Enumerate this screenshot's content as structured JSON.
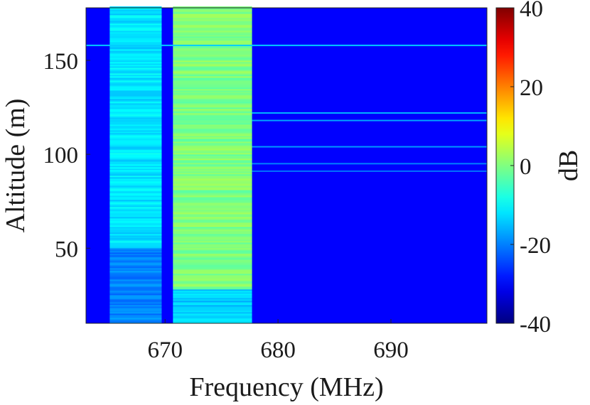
{
  "chart_data": {
    "type": "heatmap",
    "title": "",
    "xlabel": "Frequency (MHz)",
    "ylabel": "Altitude (m)",
    "colorbar_label": "dB",
    "xlim": [
      663,
      698.5
    ],
    "ylim": [
      10,
      178
    ],
    "clim": [
      -40,
      40
    ],
    "x_ticks": [
      670,
      680,
      690
    ],
    "y_ticks": [
      50,
      100,
      150
    ],
    "colorbar_ticks": [
      -40,
      -20,
      0,
      20,
      40
    ],
    "colormap": "jet",
    "background_level_db": -30,
    "bands": [
      {
        "id": "band-1",
        "freq_start": 665.1,
        "freq_end": 669.7,
        "alt_start": 10,
        "alt_end": 178,
        "level_db": -12,
        "low_alt_level_db": -20,
        "low_alt_below": 50
      },
      {
        "id": "band-2",
        "freq_start": 670.7,
        "freq_end": 677.7,
        "alt_start": 10,
        "alt_end": 178,
        "level_db": 0,
        "low_alt_level_db": -14,
        "low_alt_below": 28
      }
    ],
    "horizontal_lines": [
      {
        "altitude": 158,
        "freq_start": 663,
        "freq_end": 698.5,
        "level_db": -14
      },
      {
        "altitude": 122,
        "freq_start": 677.7,
        "freq_end": 698.5,
        "level_db": -16
      },
      {
        "altitude": 118,
        "freq_start": 677.7,
        "freq_end": 698.5,
        "level_db": -17
      },
      {
        "altitude": 104,
        "freq_start": 677.7,
        "freq_end": 698.5,
        "level_db": -18
      },
      {
        "altitude": 95,
        "freq_start": 677.7,
        "freq_end": 698.5,
        "level_db": -20
      },
      {
        "altitude": 91,
        "freq_start": 677.7,
        "freq_end": 698.5,
        "level_db": -21
      }
    ],
    "grid": false
  }
}
